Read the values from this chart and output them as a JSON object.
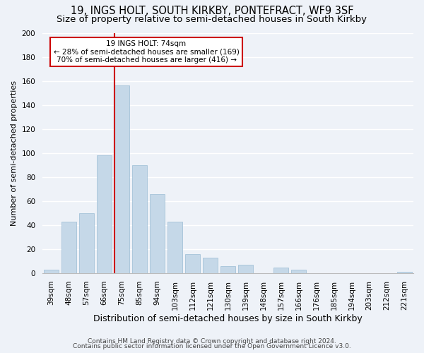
{
  "title": "19, INGS HOLT, SOUTH KIRKBY, PONTEFRACT, WF9 3SF",
  "subtitle": "Size of property relative to semi-detached houses in South Kirkby",
  "xlabel": "Distribution of semi-detached houses by size in South Kirkby",
  "ylabel": "Number of semi-detached properties",
  "categories": [
    "39sqm",
    "48sqm",
    "57sqm",
    "66sqm",
    "75sqm",
    "85sqm",
    "94sqm",
    "103sqm",
    "112sqm",
    "121sqm",
    "130sqm",
    "139sqm",
    "148sqm",
    "157sqm",
    "166sqm",
    "176sqm",
    "185sqm",
    "194sqm",
    "203sqm",
    "212sqm",
    "221sqm"
  ],
  "values": [
    3,
    43,
    50,
    98,
    156,
    90,
    66,
    43,
    16,
    13,
    6,
    7,
    0,
    5,
    3,
    0,
    0,
    0,
    0,
    0,
    1
  ],
  "bar_color": "#c5d8e8",
  "bar_edge_color": "#9bbcd4",
  "highlight_bar_index": 4,
  "highlight_line_color": "#cc0000",
  "ylim": [
    0,
    200
  ],
  "yticks": [
    0,
    20,
    40,
    60,
    80,
    100,
    120,
    140,
    160,
    180,
    200
  ],
  "annotation_title": "19 INGS HOLT: 74sqm",
  "annotation_line1": "← 28% of semi-detached houses are smaller (169)",
  "annotation_line2": "70% of semi-detached houses are larger (416) →",
  "annotation_box_color": "#ffffff",
  "annotation_box_edge": "#cc0000",
  "footer1": "Contains HM Land Registry data © Crown copyright and database right 2024.",
  "footer2": "Contains public sector information licensed under the Open Government Licence v3.0.",
  "bg_color": "#eef2f8",
  "plot_bg_color": "#eef2f8",
  "grid_color": "#ffffff",
  "title_fontsize": 10.5,
  "subtitle_fontsize": 9.5,
  "ylabel_fontsize": 8,
  "xlabel_fontsize": 9,
  "tick_fontsize": 7.5,
  "footer_fontsize": 6.5
}
